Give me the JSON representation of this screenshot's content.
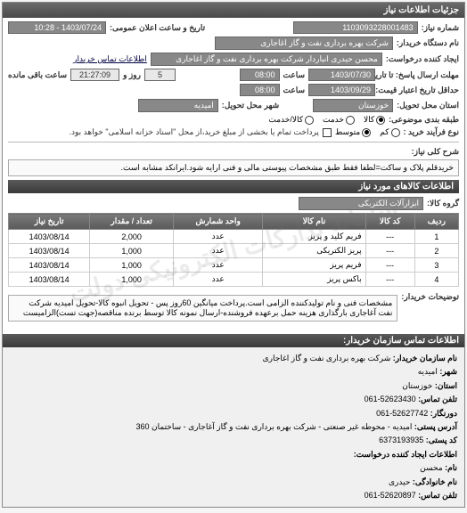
{
  "panel_title": "جزئیات اطلاعات نیاز",
  "header": {
    "req_no_label": "شماره نیاز:",
    "req_no": "1103093228001483",
    "ann_label": "تاریخ و ساعت اعلان عمومی:",
    "ann_value": "1403/07/24 - 10:28",
    "buyer_label": "نام دستگاه خریدار:",
    "buyer": "شرکت بهره برداری نفت و گاز اغاجاری",
    "creator_label": "ایجاد کننده درخواست:",
    "creator": "محسن حیدری انباردار شرکت بهره برداری نفت و گاز اغاجاری",
    "contact_link": "اطلاعات تماس خریدار"
  },
  "deadlines": {
    "resp_label": "مهلت ارسال پاسخ: تا تاریخ:",
    "resp_date": "1403/07/30",
    "time_label": "ساعت",
    "resp_time": "08:00",
    "remain_days": "5",
    "remain_days_label": "روز و",
    "remain_time": "21:27:09",
    "remain_suffix": "ساعت باقی مانده",
    "cred_label": "حداقل تاریخ اعتبار قیمت: تا تاریخ:",
    "cred_date": "1403/09/29",
    "cred_time": "08:00"
  },
  "delivery": {
    "province_label": "استان محل تحویل:",
    "province": "خوزستان",
    "city_label": "شهر محل تحویل:",
    "city": "امیدیه"
  },
  "budget": {
    "type_label": "طبقه بندی موضوعی:",
    "opt_goods": "کالا",
    "opt_service": "خدمت",
    "opt_both": "کالا/خدمت",
    "process_label": "نوع فرآیند خرید :",
    "opt_low": "کم",
    "opt_mid": "متوسط",
    "note": "پرداخت تمام یا بخشی از مبلغ خرید،از محل \"اسناد خزانه اسلامی\" خواهد بود.",
    "note_checkbox": false
  },
  "need": {
    "title_label": "شرح کلی نیاز:",
    "title": "خریدقلم پلاک و ساکت=لطفا فقط طبق مشخصات پیوستی مالی و فنی ارایه شود.ایرانکد مشابه است."
  },
  "items": {
    "header": "اطلاعات کالاهای مورد نیاز",
    "group_label": "گروه کالا:",
    "group": "ابزارآلات الکتریکی",
    "columns": [
      "ردیف",
      "کد کالا",
      "نام کالا",
      "واحد شمارش",
      "تعداد / مقدار",
      "تاریخ نیاز"
    ],
    "rows": [
      [
        "1",
        "---",
        "فریم کلید و پریز",
        "عدد",
        "2,000",
        "1403/08/14"
      ],
      [
        "2",
        "---",
        "پریز الکتریکی",
        "عدد",
        "1,000",
        "1403/08/14"
      ],
      [
        "3",
        "---",
        "فریم پریز",
        "عدد",
        "1,000",
        "1403/08/14"
      ],
      [
        "4",
        "---",
        "باکس پریز",
        "عدد",
        "1,000",
        "1403/08/14"
      ]
    ],
    "watermark": "سامانه تدارکات الکترونیکی دولت"
  },
  "buyer_note": {
    "label": "توضیحات خریدار:",
    "text": "مشخصات فنی و نام تولیدکننده الزامی است.پرداخت میانگین 60روز پس - تحویل انبوه کالا-تحویل امیدیه شرکت نفت آغاجاری بارگذاری هزینه حمل برعهده فروشنده-ارسال نمونه کالا توسط برنده مناقصه(جهت تست)الزامیست"
  },
  "contact": {
    "header": "اطلاعات تماس سازمان خریدار:",
    "org_label": "نام سازمان خریدار:",
    "org": "شرکت بهره برداری نفت و گاز اغاجاری",
    "city_label": "شهر:",
    "city": "امیدیه",
    "province_label": "استان:",
    "province": "خوزستان",
    "tel_label": "تلفن تماس:",
    "tel": "52623430-061",
    "fax_label": "دورنگار:",
    "fax": "52627742-061",
    "addr_label": "آدرس پستی:",
    "addr": "امیدیه - محوطه غیر صنعتی - شرکت بهره برداری نفت و گاز آغاجاری - ساختمان 360",
    "zip_label": "کد پستی:",
    "zip": "6373193935",
    "creator_hdr": "اطلاعات ایجاد کننده درخواست:",
    "name_label": "نام:",
    "name": "محسن",
    "family_label": "نام خانوادگی:",
    "family": "حیدری",
    "tel2_label": "تلفن تماس:",
    "tel2": "52620897-061"
  },
  "colors": {
    "header_bg": "#555555",
    "field_bg": "#888888",
    "border": "#aaaaaa"
  }
}
